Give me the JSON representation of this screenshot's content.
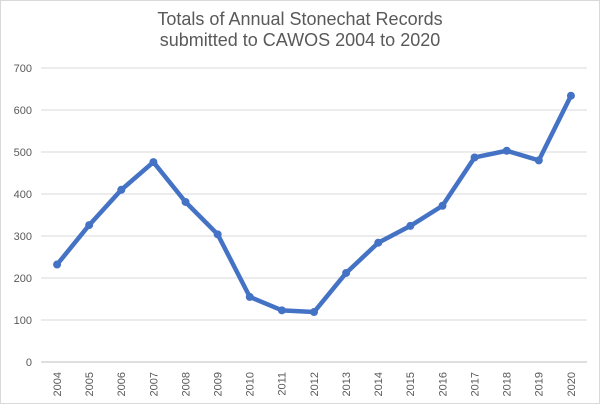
{
  "chart_data": {
    "type": "line",
    "title_line1": "Totals of Annual Stonechat Records",
    "title_line2": "submitted to CAWOS 2004 to 2020",
    "xlabel": "",
    "ylabel": "",
    "categories": [
      "2004",
      "2005",
      "2006",
      "2007",
      "2008",
      "2009",
      "2010",
      "2011",
      "2012",
      "2013",
      "2014",
      "2015",
      "2016",
      "2017",
      "2018",
      "2019",
      "2020"
    ],
    "series": [
      {
        "values": [
          232,
          326,
          410,
          476,
          381,
          304,
          155,
          123,
          119,
          212,
          284,
          324,
          372,
          487,
          503,
          480,
          634
        ],
        "color": "#4472c4"
      }
    ],
    "ylim": [
      0,
      700
    ],
    "yticks": [
      0,
      100,
      200,
      300,
      400,
      500,
      600,
      700
    ],
    "grid": true,
    "legend": "none"
  }
}
